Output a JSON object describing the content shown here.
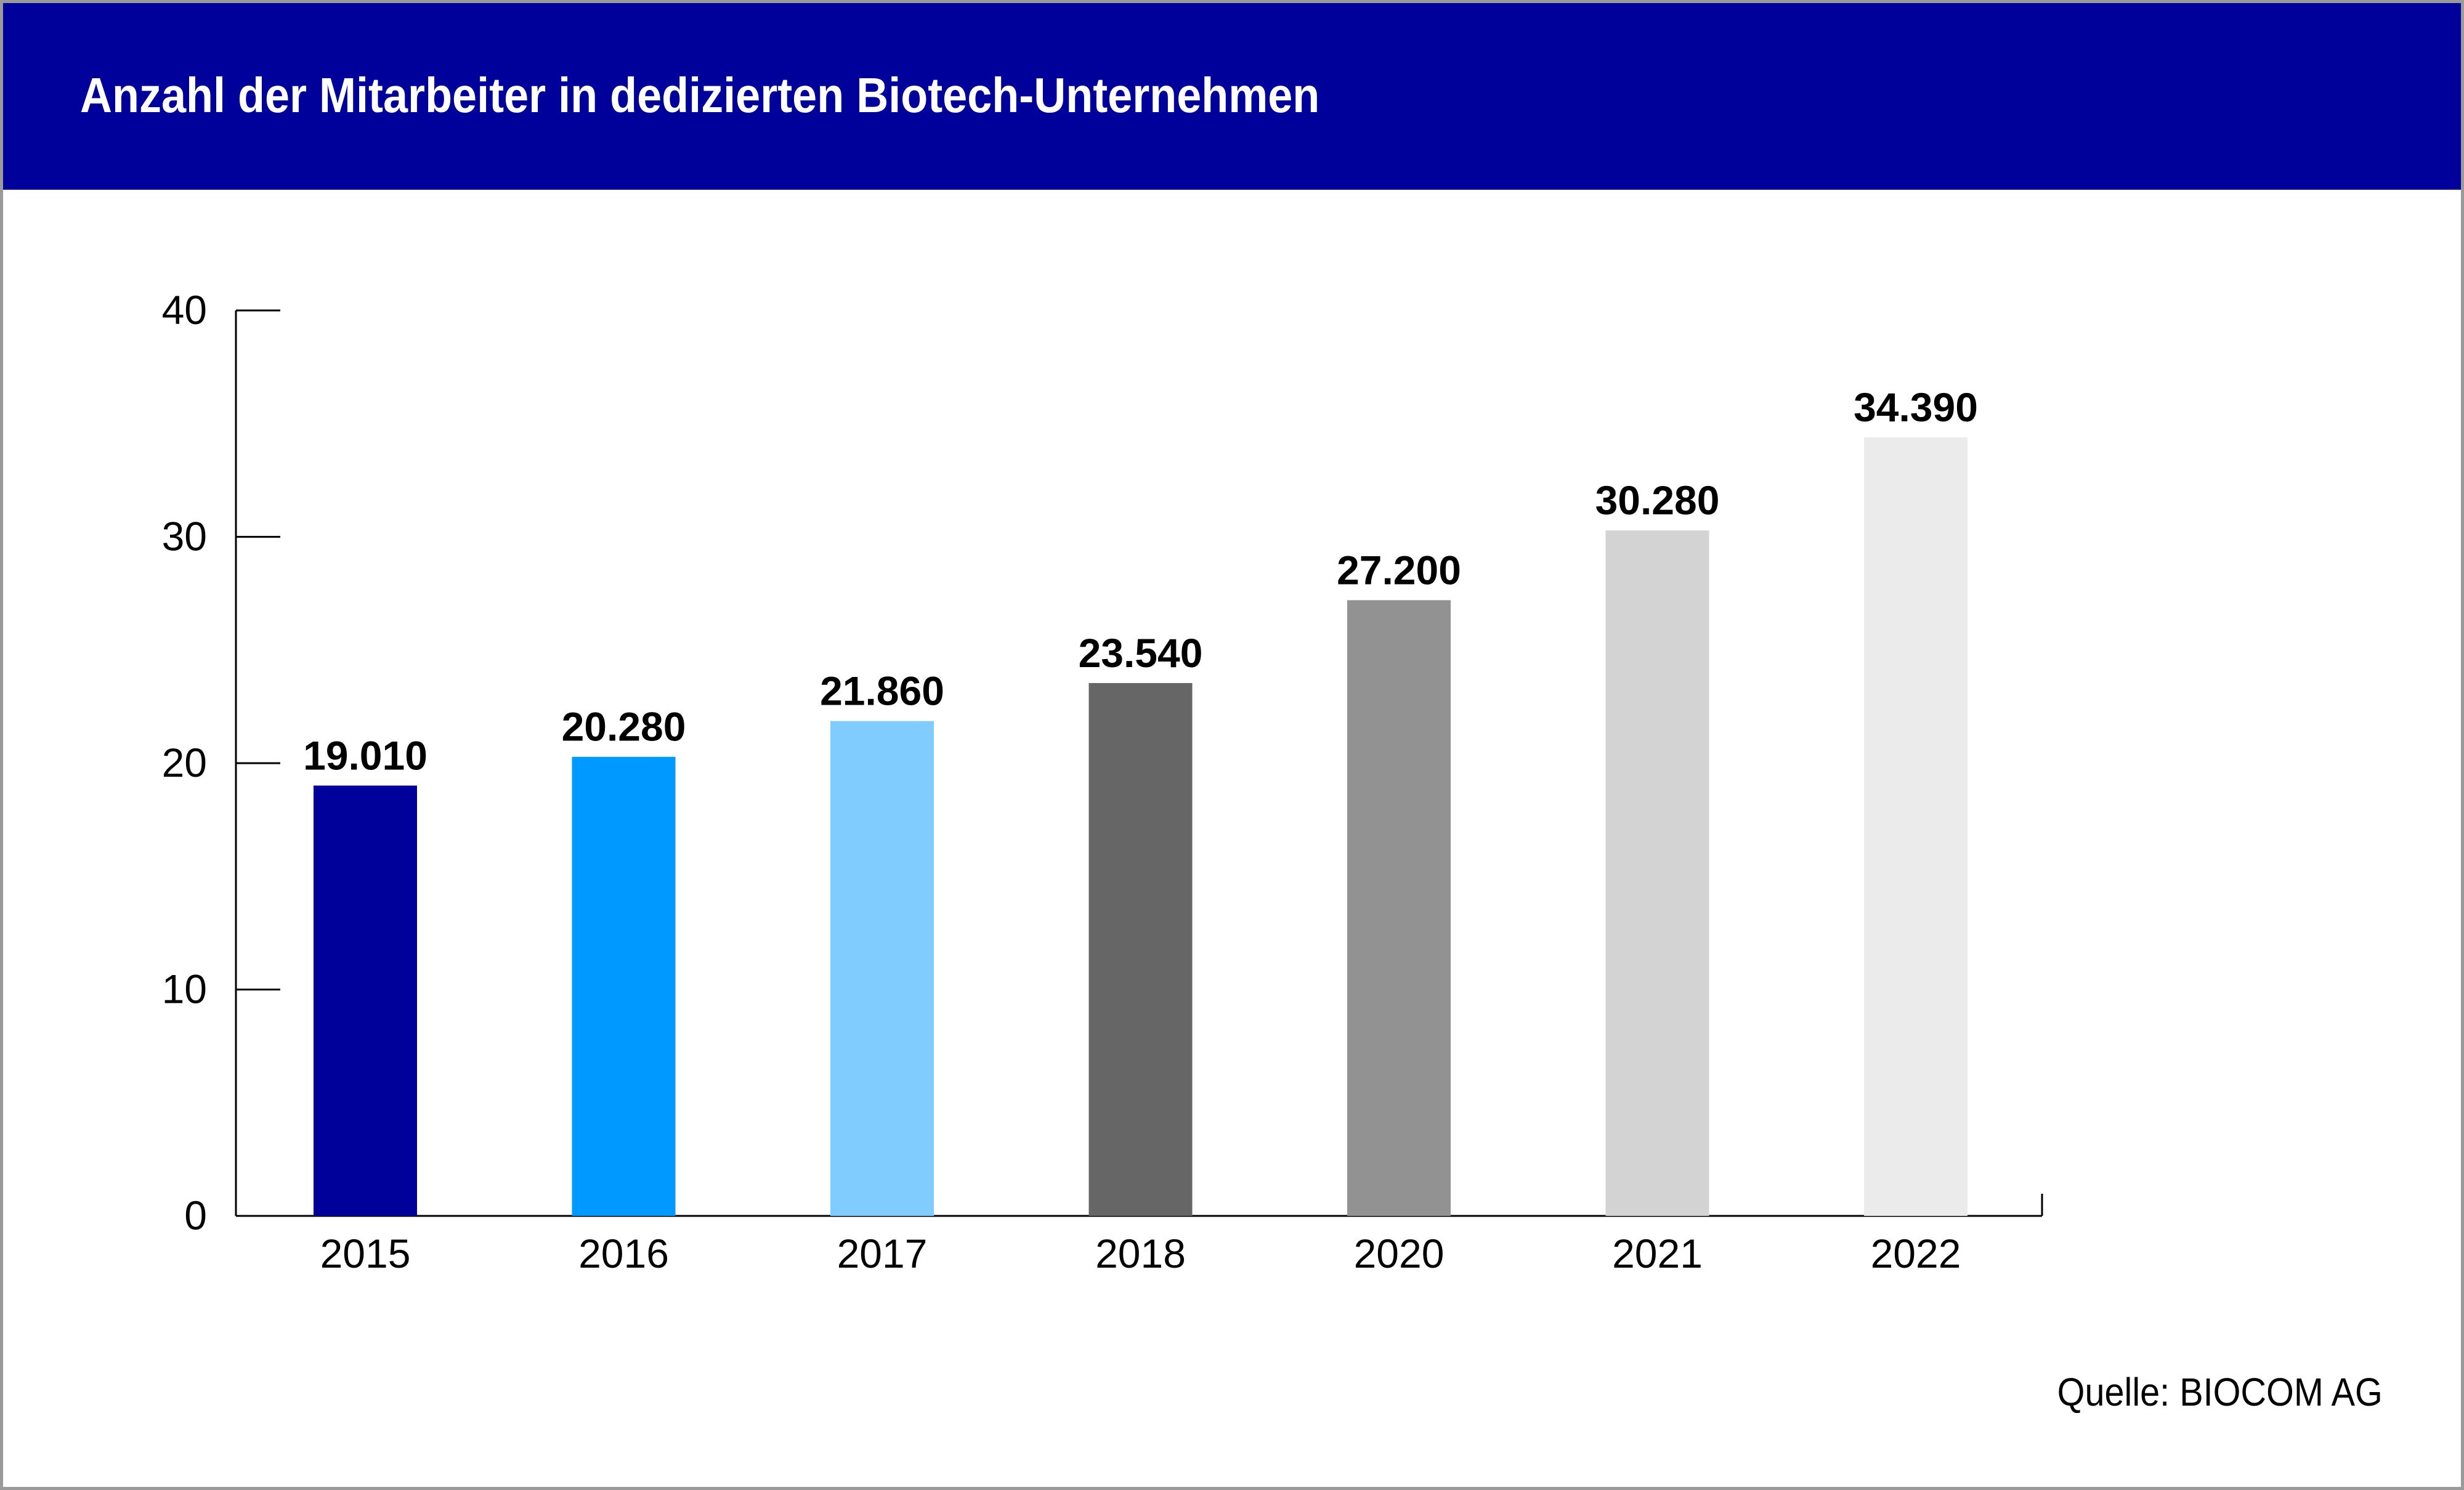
{
  "chart_data": {
    "type": "bar",
    "title": "Anzahl der Mitarbeiter in dedizierten Biotech-Unternehmen",
    "categories": [
      "2015",
      "2016",
      "2017",
      "2018",
      "2020",
      "2021",
      "2022"
    ],
    "values": [
      19.01,
      20.28,
      21.86,
      23.54,
      27.2,
      30.28,
      34.39
    ],
    "data_labels": [
      "19.010",
      "20.280",
      "21.860",
      "23.540",
      "27.200",
      "30.280",
      "34.390"
    ],
    "bar_colors": [
      "#00009a",
      "#0099ff",
      "#80ccff",
      "#666666",
      "#929292",
      "#d3d3d3",
      "#ebebeb"
    ],
    "ylim": [
      0,
      40
    ],
    "yticks": [
      0,
      10,
      20,
      30,
      40
    ],
    "xlabel": "",
    "ylabel": "",
    "grid": false
  },
  "source": "Quelle: BIOCOM AG",
  "colors": {
    "header": "#00009a",
    "header_text": "#ffffff",
    "frame": "#9a9a9a"
  }
}
